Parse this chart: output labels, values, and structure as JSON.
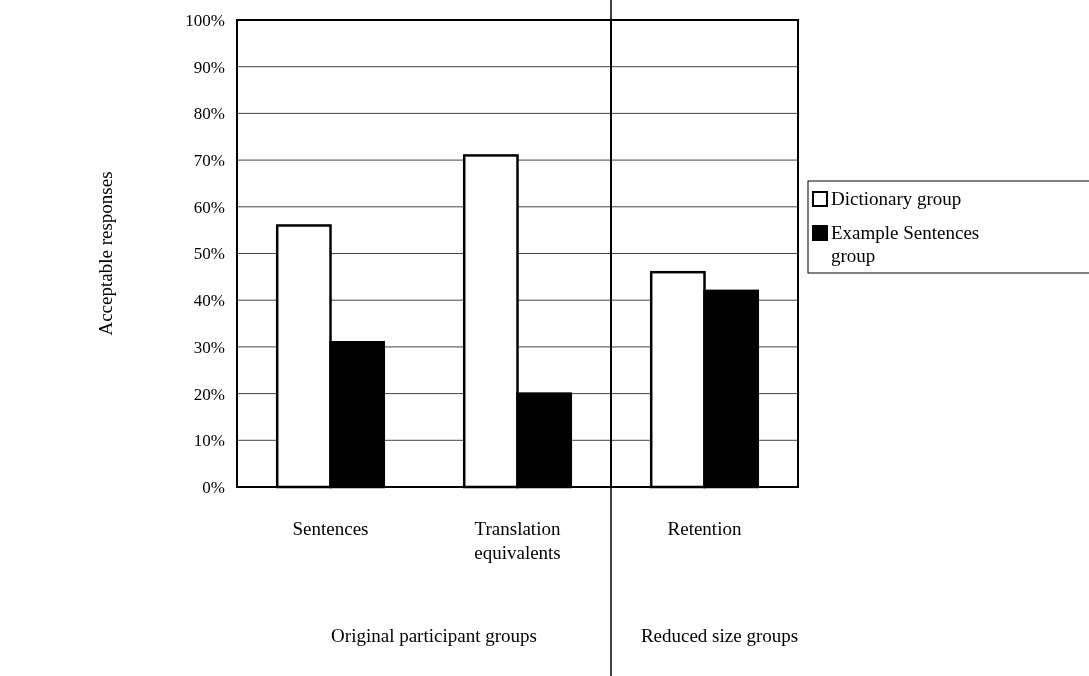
{
  "chart_data": [
    {
      "type": "bar",
      "ylabel": "Acceptable responses",
      "xlabel": "Original participant groups",
      "categories": [
        "Sentences",
        "Translation equivalents"
      ],
      "series": [
        {
          "color": "#ffffff",
          "values": [
            56,
            71
          ]
        },
        {
          "color": "#000000",
          "values": [
            31,
            20
          ]
        }
      ],
      "ylim": [
        0,
        100
      ],
      "yticks": [
        {
          "value": 0,
          "label": "0%"
        },
        {
          "value": 10,
          "label": "10%"
        },
        {
          "value": 20,
          "label": "20%"
        },
        {
          "value": 30,
          "label": "30%"
        },
        {
          "value": 40,
          "label": "40%"
        },
        {
          "value": 50,
          "label": "50%"
        },
        {
          "value": 60,
          "label": "60%"
        },
        {
          "value": 70,
          "label": "70%"
        },
        {
          "value": 80,
          "label": "80%"
        },
        {
          "value": 90,
          "label": "90%"
        },
        {
          "value": 100,
          "label": "100%"
        }
      ],
      "grid": "y"
    },
    {
      "type": "bar",
      "xlabel": "Reduced size groups",
      "categories": [
        "Retention"
      ],
      "series": [
        {
          "name": "Dictionary group",
          "color": "#ffffff",
          "values": [
            46
          ]
        },
        {
          "name": "Example Sentences group",
          "color": "#000000",
          "values": [
            42
          ]
        }
      ],
      "ylim": [
        0,
        100
      ],
      "yticks": [
        0,
        10,
        20,
        30,
        40,
        50,
        60,
        70,
        80,
        90,
        100
      ],
      "grid": "y",
      "legend": "right",
      "tick_labels": "x"
    }
  ]
}
